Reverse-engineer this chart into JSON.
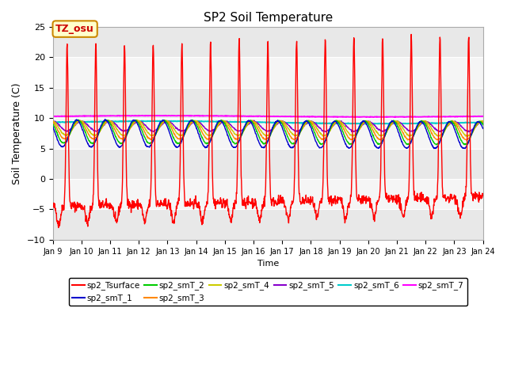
{
  "title": "SP2 Soil Temperature",
  "ylabel": "Soil Temperature (C)",
  "xlabel": "Time",
  "xlim_days": [
    9,
    24
  ],
  "ylim": [
    -10,
    25
  ],
  "yticks": [
    -10,
    -5,
    0,
    5,
    10,
    15,
    20,
    25
  ],
  "xtick_labels": [
    "Jan 9",
    "Jan 10",
    "Jan 11",
    "Jan 12",
    "Jan 13",
    "Jan 14",
    "Jan 15",
    "Jan 16",
    "Jan 17",
    "Jan 18",
    "Jan 19",
    "Jan 20",
    "Jan 21",
    "Jan 22",
    "Jan 23",
    "Jan 24"
  ],
  "annotation_text": "TZ_osu",
  "annotation_bg": "#ffffcc",
  "annotation_border": "#cc8800",
  "annotation_color": "#cc0000",
  "plot_bg": "#ffffff",
  "series_colors": {
    "sp2_Tsurface": "#ff0000",
    "sp2_smT_1": "#0000cc",
    "sp2_smT_2": "#00cc00",
    "sp2_smT_3": "#ff8800",
    "sp2_smT_4": "#cccc00",
    "sp2_smT_5": "#8800cc",
    "sp2_smT_6": "#00cccc",
    "sp2_smT_7": "#ff00ff"
  }
}
